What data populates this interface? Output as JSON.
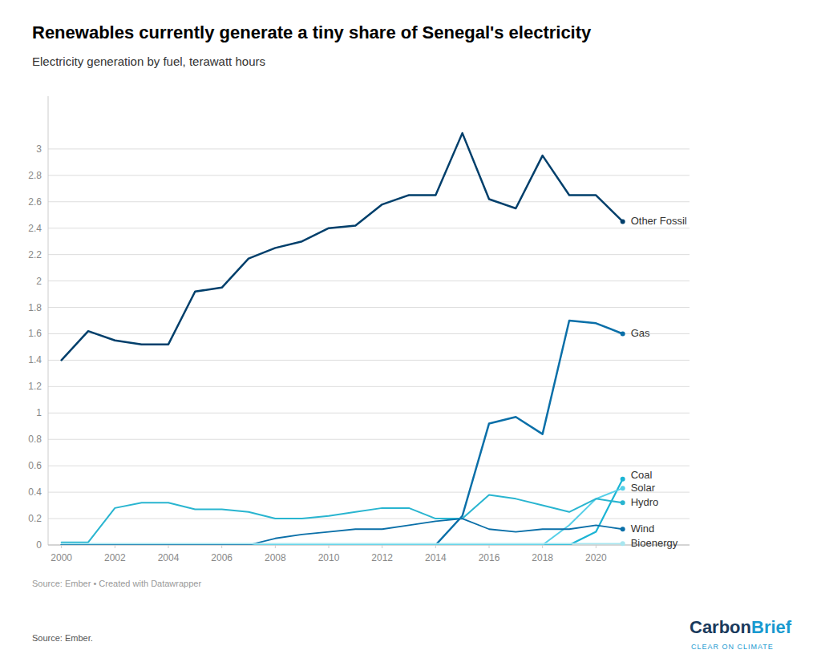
{
  "chart_data": {
    "type": "line",
    "title": "Renewables currently generate a tiny share of Senegal's electricity",
    "subtitle": "Electricity generation by fuel, terawatt hours",
    "annotations": [
      {
        "text": "Source: Ember • Created with Datawrapper",
        "color": "#999999"
      },
      {
        "text": "Source: Ember.",
        "color": "#555555"
      },
      {
        "text": "Carbon",
        "color": "#1a3a5c"
      },
      {
        "text": "Brief",
        "color": "#1a9ad0"
      },
      {
        "text": "CLEAR ON CLIMATE",
        "color": "#1a9ad0"
      }
    ],
    "x": [
      2000,
      2001,
      2002,
      2003,
      2004,
      2005,
      2006,
      2007,
      2008,
      2009,
      2010,
      2011,
      2012,
      2013,
      2014,
      2015,
      2016,
      2017,
      2018,
      2019,
      2020,
      2021
    ],
    "series": [
      {
        "name": "Other Fossil",
        "color": "#003f6b",
        "values": [
          1.4,
          1.62,
          1.55,
          1.52,
          1.52,
          1.92,
          1.95,
          2.17,
          2.25,
          2.3,
          2.4,
          2.42,
          2.58,
          2.65,
          2.65,
          3.12,
          2.62,
          2.55,
          2.95,
          2.65,
          2.65,
          2.45
        ]
      },
      {
        "name": "Gas",
        "color": "#0a6fa8",
        "values": [
          0.0,
          0.0,
          0.0,
          0.0,
          0.0,
          0.0,
          0.0,
          0.0,
          0.0,
          0.0,
          0.0,
          0.0,
          0.0,
          0.0,
          0.0,
          0.22,
          0.92,
          0.97,
          0.84,
          1.7,
          1.68,
          1.6
        ]
      },
      {
        "name": "Coal",
        "color": "#1ab4d4",
        "values": [
          0.0,
          0.0,
          0.0,
          0.0,
          0.0,
          0.0,
          0.0,
          0.0,
          0.0,
          0.0,
          0.0,
          0.0,
          0.0,
          0.0,
          0.0,
          0.0,
          0.0,
          0.0,
          0.0,
          0.0,
          0.1,
          0.5
        ]
      },
      {
        "name": "Solar",
        "color": "#55cfe8",
        "values": [
          0.0,
          0.0,
          0.0,
          0.0,
          0.0,
          0.0,
          0.0,
          0.0,
          0.0,
          0.0,
          0.0,
          0.0,
          0.0,
          0.0,
          0.0,
          0.0,
          0.0,
          0.0,
          0.0,
          0.15,
          0.35,
          0.43
        ]
      },
      {
        "name": "Hydro",
        "color": "#29b5d0",
        "values": [
          0.02,
          0.02,
          0.28,
          0.32,
          0.32,
          0.27,
          0.27,
          0.25,
          0.2,
          0.2,
          0.22,
          0.25,
          0.28,
          0.28,
          0.2,
          0.2,
          0.38,
          0.35,
          0.3,
          0.25,
          0.35,
          0.32
        ]
      },
      {
        "name": "Wind",
        "color": "#0a6fa8",
        "values": [
          0.0,
          0.0,
          0.0,
          0.0,
          0.0,
          0.0,
          0.0,
          0.0,
          0.05,
          0.08,
          0.1,
          0.12,
          0.12,
          0.15,
          0.18,
          0.2,
          0.12,
          0.1,
          0.12,
          0.12,
          0.15,
          0.12
        ]
      },
      {
        "name": "Bioenergy",
        "color": "#a8e6ef",
        "values": [
          0.01,
          0.01,
          0.01,
          0.01,
          0.01,
          0.01,
          0.01,
          0.01,
          0.01,
          0.01,
          0.01,
          0.01,
          0.01,
          0.01,
          0.01,
          0.01,
          0.01,
          0.01,
          0.01,
          0.01,
          0.01,
          0.01
        ]
      }
    ],
    "xlim": [
      1999.5,
      2023.5
    ],
    "ylim": [
      0,
      3.4
    ],
    "xticks": [
      2000,
      2002,
      2004,
      2006,
      2008,
      2010,
      2012,
      2014,
      2016,
      2018,
      2020
    ],
    "yticks": [
      0,
      0.2,
      0.4,
      0.6,
      0.8,
      1,
      1.2,
      1.4,
      1.6,
      1.8,
      2,
      2.2,
      2.4,
      2.6,
      2.8,
      3
    ],
    "grid": true
  }
}
